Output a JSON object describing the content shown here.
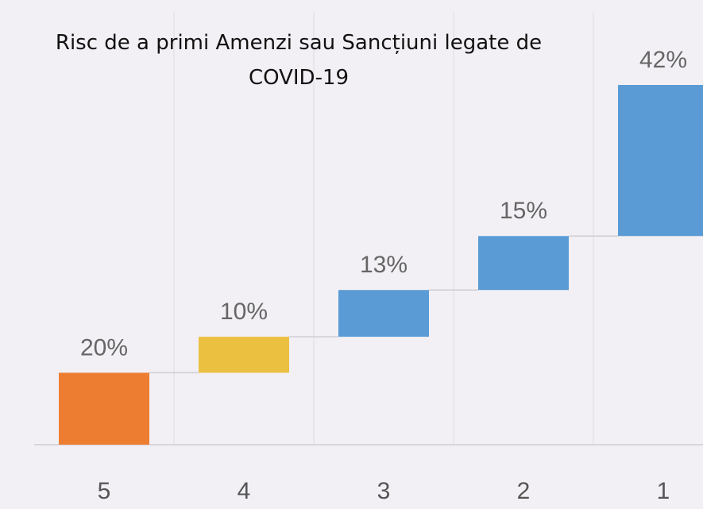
{
  "chart_data": {
    "type": "waterfall",
    "title": "Risc de a primi Amenzi sau Sancțiuni legate de COVID-19",
    "categories": [
      "5",
      "4",
      "3",
      "2",
      "1"
    ],
    "values": [
      20,
      10,
      13,
      15,
      42
    ],
    "value_labels": [
      "20%",
      "10%",
      "13%",
      "15%",
      "42%"
    ],
    "colors": [
      "#ed7d31",
      "#ebc040",
      "#5b9bd5",
      "#5b9bd5",
      "#5b9bd5"
    ],
    "ylim": [
      0,
      100
    ],
    "grid": true
  }
}
